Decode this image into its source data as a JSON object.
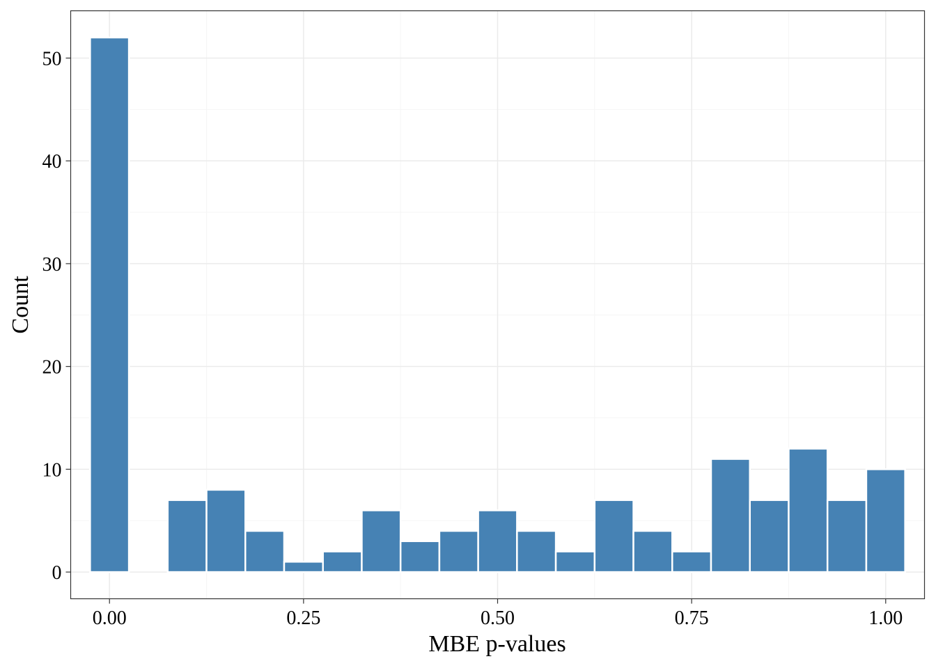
{
  "chart_data": {
    "type": "bar",
    "subtype": "histogram",
    "title": "",
    "xlabel": "MBE p-values",
    "ylabel": "Count",
    "bin_width": 0.05,
    "bins": [
      {
        "center": 0.0,
        "count": 52
      },
      {
        "center": 0.1,
        "count": 7
      },
      {
        "center": 0.15,
        "count": 8
      },
      {
        "center": 0.2,
        "count": 4
      },
      {
        "center": 0.25,
        "count": 1
      },
      {
        "center": 0.3,
        "count": 2
      },
      {
        "center": 0.35,
        "count": 6
      },
      {
        "center": 0.4,
        "count": 3
      },
      {
        "center": 0.45,
        "count": 4
      },
      {
        "center": 0.5,
        "count": 6
      },
      {
        "center": 0.55,
        "count": 4
      },
      {
        "center": 0.6,
        "count": 2
      },
      {
        "center": 0.65,
        "count": 7
      },
      {
        "center": 0.7,
        "count": 4
      },
      {
        "center": 0.75,
        "count": 2
      },
      {
        "center": 0.8,
        "count": 11
      },
      {
        "center": 0.85,
        "count": 7
      },
      {
        "center": 0.9,
        "count": 12
      },
      {
        "center": 0.95,
        "count": 7
      },
      {
        "center": 1.0,
        "count": 10
      }
    ],
    "x_ticks": [
      "0.00",
      "0.25",
      "0.50",
      "0.75",
      "1.00"
    ],
    "y_ticks": [
      "0",
      "10",
      "20",
      "30",
      "40",
      "50"
    ],
    "xlim": [
      -0.05,
      1.05
    ],
    "ylim": [
      -2.6,
      54.6
    ],
    "grid": true,
    "legend": "none",
    "colors": {
      "bar_fill": "#4682b4",
      "bar_outline": "#ffffff",
      "grid_major": "#ebebeb",
      "grid_minor": "#f5f5f5",
      "panel_border": "#333333"
    }
  }
}
